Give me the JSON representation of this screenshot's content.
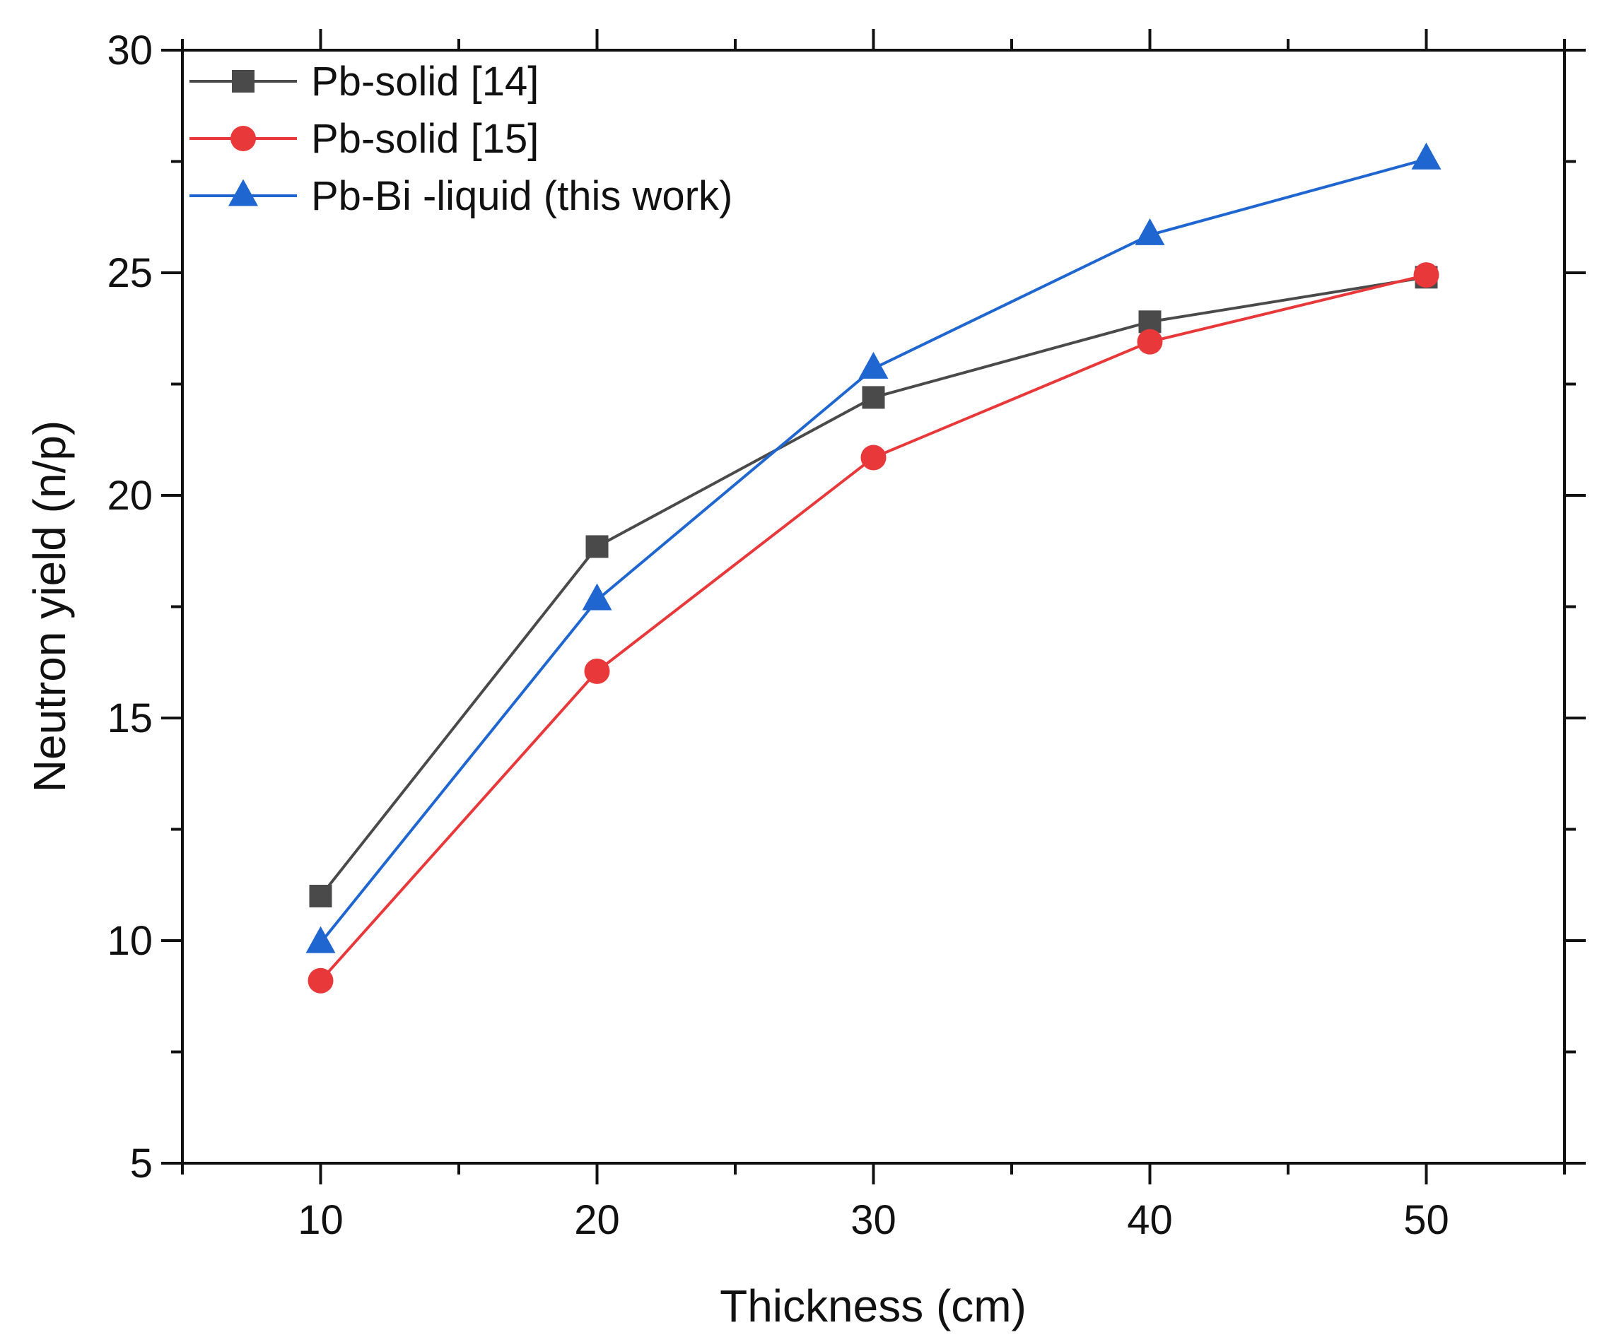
{
  "chart_data": {
    "type": "line",
    "title": "",
    "xlabel": "Thickness (cm)",
    "ylabel": "Neutron yield (n/p)",
    "xlim": [
      5,
      55
    ],
    "ylim": [
      5,
      30
    ],
    "x_ticks": [
      10,
      20,
      30,
      40,
      50
    ],
    "x_minor_ticks": [
      5,
      15,
      25,
      35,
      45,
      55
    ],
    "y_ticks": [
      5,
      10,
      15,
      20,
      25,
      30
    ],
    "y_minor_ticks": [
      7.5,
      12.5,
      17.5,
      22.5,
      27.5
    ],
    "x_tick_labels": [
      "10",
      "20",
      "30",
      "40",
      "50"
    ],
    "y_tick_labels": [
      "5",
      "10",
      "15",
      "20",
      "25",
      "30"
    ],
    "x": [
      10,
      20,
      30,
      40,
      50
    ],
    "grid": false,
    "legend_position": "top-left",
    "series": [
      {
        "name": "Pb-solid [14]",
        "values": [
          11.0,
          18.85,
          22.2,
          23.9,
          24.9
        ],
        "color": "#4a4a4a",
        "marker": "square"
      },
      {
        "name": "Pb-solid [15]",
        "values": [
          9.1,
          16.05,
          20.85,
          23.45,
          24.95
        ],
        "color": "#e8383a",
        "marker": "circle"
      },
      {
        "name": "Pb-Bi -liquid (this work)",
        "values": [
          9.95,
          17.65,
          22.85,
          25.85,
          27.55
        ],
        "color": "#1f66d1",
        "marker": "triangle"
      }
    ]
  }
}
